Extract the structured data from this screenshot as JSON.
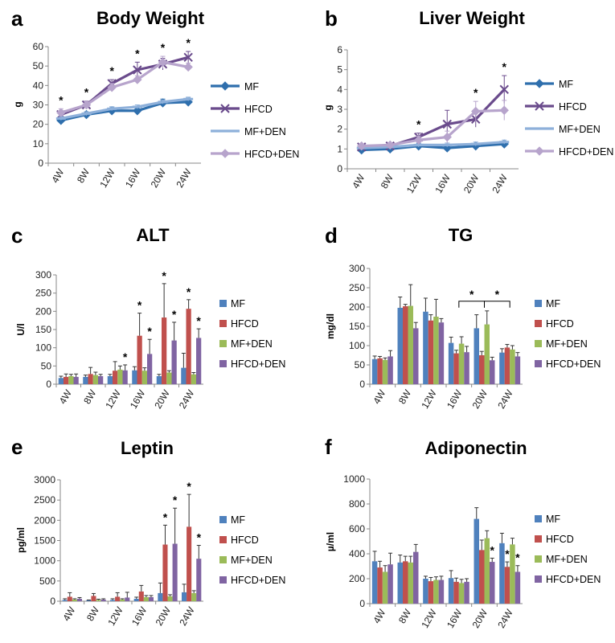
{
  "figure": {
    "panel_letters": [
      "a",
      "b",
      "c",
      "d",
      "e",
      "f"
    ]
  },
  "colors": {
    "line": {
      "MF": "#2F6FAD",
      "HFCD": "#6A4B8C",
      "MF+DEN": "#8EB0DA",
      "HFCD+DEN": "#B7A4CC"
    },
    "bar": {
      "MF": "#4F81BD",
      "HFCD": "#C0504D",
      "MF+DEN": "#9BBB59",
      "HFCD+DEN": "#8064A2"
    }
  },
  "chart_data": [
    {
      "type": "line",
      "title": "Body Weight",
      "xlabel": "",
      "ylabel": "g",
      "categories": [
        "4W",
        "8W",
        "12W",
        "16W",
        "20W",
        "24W"
      ],
      "ylim": [
        0,
        60
      ],
      "yticks": [
        0,
        10,
        20,
        30,
        40,
        50,
        60
      ],
      "grid": false,
      "legend": "right",
      "series": [
        {
          "name": "MF",
          "marker": "diamond",
          "values": [
            22,
            25,
            27,
            27,
            31,
            31.5
          ],
          "err": [
            1.5,
            1.5,
            2,
            2,
            2,
            2
          ]
        },
        {
          "name": "HFCD",
          "marker": "x",
          "values": [
            25,
            30,
            41,
            48,
            51,
            54.5
          ],
          "err": [
            2,
            2,
            2,
            4,
            3,
            3
          ]
        },
        {
          "name": "MF+DEN",
          "marker": "dash",
          "values": [
            23,
            25.5,
            28,
            29,
            31.5,
            33
          ],
          "err": [
            1,
            1,
            1,
            1,
            1,
            1
          ]
        },
        {
          "name": "HFCD+DEN",
          "marker": "diamond",
          "values": [
            26,
            30,
            39,
            43,
            52,
            49.5
          ],
          "err": [
            2,
            2,
            2,
            2,
            3,
            2
          ]
        }
      ],
      "significance": [
        {
          "category": "4W",
          "label": "*"
        },
        {
          "category": "8W",
          "label": "*"
        },
        {
          "category": "12W",
          "label": "*"
        },
        {
          "category": "16W",
          "label": "*"
        },
        {
          "category": "20W",
          "label": "*"
        },
        {
          "category": "24W",
          "label": "*"
        }
      ]
    },
    {
      "type": "line",
      "title": "Liver Weight",
      "xlabel": "",
      "ylabel": "g",
      "categories": [
        "4W",
        "8W",
        "12W",
        "16W",
        "20W",
        "24W"
      ],
      "ylim": [
        0,
        6
      ],
      "yticks": [
        0,
        1,
        2,
        3,
        4,
        5,
        6
      ],
      "grid": false,
      "legend": "right",
      "series": [
        {
          "name": "MF",
          "marker": "diamond",
          "values": [
            0.95,
            1.0,
            1.15,
            1.05,
            1.15,
            1.25
          ],
          "err": [
            0.1,
            0.1,
            0.1,
            0.1,
            0.1,
            0.1
          ]
        },
        {
          "name": "HFCD",
          "marker": "x",
          "values": [
            1.1,
            1.15,
            1.6,
            2.25,
            2.5,
            4.0
          ],
          "err": [
            0.1,
            0.1,
            0.2,
            0.7,
            0.4,
            0.7
          ]
        },
        {
          "name": "MF+DEN",
          "marker": "dash",
          "values": [
            1.05,
            1.1,
            1.2,
            1.2,
            1.25,
            1.35
          ],
          "err": [
            0.1,
            0.1,
            0.1,
            0.1,
            0.1,
            0.1
          ]
        },
        {
          "name": "HFCD+DEN",
          "marker": "diamond",
          "values": [
            1.15,
            1.2,
            1.45,
            1.6,
            2.9,
            2.95
          ],
          "err": [
            0.1,
            0.1,
            0.2,
            0.3,
            0.5,
            0.5
          ]
        }
      ],
      "significance": [
        {
          "category": "12W",
          "label": "*"
        },
        {
          "category": "20W",
          "label": "*"
        },
        {
          "category": "24W",
          "label": "*"
        }
      ]
    },
    {
      "type": "bar",
      "title": "ALT",
      "xlabel": "",
      "ylabel": "U/l",
      "categories": [
        "4W",
        "8W",
        "12W",
        "16W",
        "20W",
        "24W"
      ],
      "ylim": [
        0,
        300
      ],
      "yticks": [
        0,
        50,
        100,
        150,
        200,
        250,
        300
      ],
      "grid": false,
      "legend": "right",
      "series": [
        {
          "name": "MF",
          "values": [
            17,
            20,
            22,
            38,
            22,
            45
          ],
          "err": [
            5,
            5,
            5,
            10,
            5,
            40
          ]
        },
        {
          "name": "HFCD",
          "values": [
            20,
            28,
            37,
            133,
            183,
            207
          ],
          "err": [
            8,
            18,
            25,
            62,
            93,
            25
          ]
        },
        {
          "name": "MF+DEN",
          "values": [
            22,
            25,
            40,
            37,
            32,
            27
          ],
          "err": [
            5,
            8,
            10,
            8,
            5,
            5
          ]
        },
        {
          "name": "HFCD+DEN",
          "values": [
            20,
            22,
            38,
            83,
            120,
            127
          ],
          "err": [
            8,
            5,
            15,
            40,
            50,
            25
          ]
        }
      ],
      "significance": [
        {
          "category": "12W",
          "series": "HFCD+DEN",
          "label": "*"
        },
        {
          "category": "16W",
          "series": "HFCD",
          "label": "*"
        },
        {
          "category": "16W",
          "series": "HFCD+DEN",
          "label": "*"
        },
        {
          "category": "20W",
          "series": "HFCD",
          "label": "*"
        },
        {
          "category": "20W",
          "series": "HFCD+DEN",
          "label": "*"
        },
        {
          "category": "24W",
          "series": "HFCD",
          "label": "*"
        },
        {
          "category": "24W",
          "series": "HFCD+DEN",
          "label": "*"
        }
      ]
    },
    {
      "type": "bar",
      "title": "TG",
      "xlabel": "",
      "ylabel": "mg/dl",
      "categories": [
        "4W",
        "8W",
        "12W",
        "16W",
        "20W",
        "24W"
      ],
      "ylim": [
        0,
        300
      ],
      "yticks": [
        0,
        50,
        100,
        150,
        200,
        250,
        300
      ],
      "grid": false,
      "legend": "right",
      "series": [
        {
          "name": "MF",
          "values": [
            65,
            198,
            188,
            107,
            145,
            82
          ],
          "err": [
            8,
            28,
            35,
            15,
            35,
            10
          ]
        },
        {
          "name": "HFCD",
          "values": [
            67,
            202,
            165,
            80,
            75,
            95
          ],
          "err": [
            5,
            5,
            15,
            8,
            10,
            8
          ]
        },
        {
          "name": "MF+DEN",
          "values": [
            63,
            203,
            175,
            105,
            155,
            90
          ],
          "err": [
            5,
            55,
            45,
            18,
            35,
            10
          ]
        },
        {
          "name": "HFCD+DEN",
          "values": [
            72,
            145,
            160,
            83,
            62,
            72
          ],
          "err": [
            15,
            15,
            10,
            15,
            8,
            10
          ]
        }
      ],
      "significance": [
        {
          "categories": [
            "16W",
            "20W"
          ],
          "type": "bracket",
          "label": "*"
        },
        {
          "categories": [
            "20W",
            "24W"
          ],
          "type": "bracket",
          "label": "*"
        }
      ]
    },
    {
      "type": "bar",
      "title": "Leptin",
      "xlabel": "",
      "ylabel": "pg/ml",
      "categories": [
        "4W",
        "8W",
        "12W",
        "16W",
        "20W",
        "24W"
      ],
      "ylim": [
        0,
        3000
      ],
      "yticks": [
        0,
        500,
        1000,
        1500,
        2000,
        2500,
        3000
      ],
      "grid": false,
      "legend": "right",
      "series": [
        {
          "name": "MF",
          "values": [
            30,
            20,
            30,
            60,
            200,
            220
          ],
          "err": [
            30,
            10,
            30,
            40,
            250,
            200
          ]
        },
        {
          "name": "HFCD",
          "values": [
            110,
            130,
            110,
            240,
            1400,
            1840
          ],
          "err": [
            100,
            60,
            100,
            150,
            480,
            800
          ]
        },
        {
          "name": "MF+DEN",
          "values": [
            40,
            30,
            40,
            100,
            120,
            200
          ],
          "err": [
            20,
            20,
            20,
            40,
            40,
            60
          ]
        },
        {
          "name": "HFCD+DEN",
          "values": [
            60,
            40,
            90,
            100,
            1420,
            1050
          ],
          "err": [
            30,
            20,
            130,
            40,
            880,
            330
          ]
        }
      ],
      "significance": [
        {
          "category": "20W",
          "series": "HFCD",
          "label": "*"
        },
        {
          "category": "20W",
          "series": "HFCD+DEN",
          "label": "*"
        },
        {
          "category": "24W",
          "series": "HFCD",
          "label": "*"
        },
        {
          "category": "24W",
          "series": "HFCD+DEN",
          "label": "*"
        }
      ]
    },
    {
      "type": "bar",
      "title": "Adiponectin",
      "xlabel": "",
      "ylabel": "µ/ml",
      "categories": [
        "4W",
        "8W",
        "12W",
        "16W",
        "20W",
        "24W"
      ],
      "ylim": [
        0,
        1000
      ],
      "yticks": [
        0,
        200,
        400,
        600,
        800,
        1000
      ],
      "grid": false,
      "legend": "right",
      "series": [
        {
          "name": "MF",
          "values": [
            340,
            330,
            200,
            205,
            680,
            485
          ],
          "err": [
            80,
            60,
            20,
            60,
            90,
            80
          ]
        },
        {
          "name": "HFCD",
          "values": [
            290,
            340,
            180,
            175,
            430,
            295
          ],
          "err": [
            50,
            40,
            30,
            30,
            80,
            40
          ]
        },
        {
          "name": "MF+DEN",
          "values": [
            255,
            330,
            190,
            165,
            525,
            475
          ],
          "err": [
            50,
            50,
            25,
            30,
            60,
            50
          ]
        },
        {
          "name": "HFCD+DEN",
          "values": [
            315,
            415,
            190,
            175,
            335,
            255
          ],
          "err": [
            90,
            60,
            30,
            25,
            30,
            50
          ]
        }
      ],
      "significance": [
        {
          "category": "20W",
          "series": "HFCD+DEN",
          "label": "*"
        },
        {
          "category": "24W",
          "series": "HFCD",
          "label": "*"
        },
        {
          "category": "24W",
          "series": "HFCD+DEN",
          "label": "*"
        }
      ]
    }
  ]
}
